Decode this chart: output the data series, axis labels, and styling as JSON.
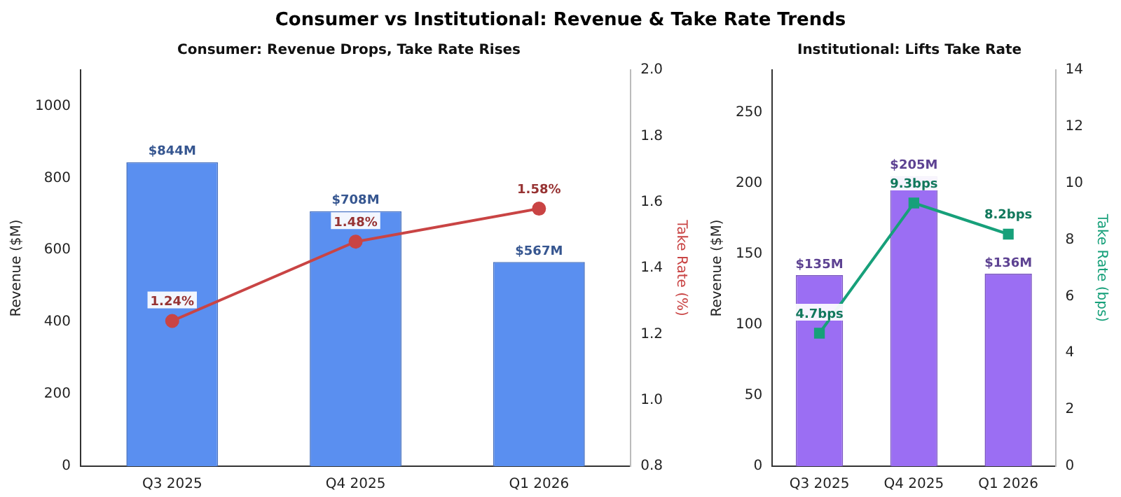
{
  "chart_data": [
    {
      "type": "bar",
      "title": "Consumer vs Institutional: Revenue & Take Rate Trends",
      "subtitle": "Consumer: Revenue Drops, Take Rate Rises",
      "categories": [
        "Q3 2025",
        "Q4 2025",
        "Q1 2026"
      ],
      "ylabel": "Revenue ($M)",
      "y2label": "Take Rate (%)",
      "ylim": [
        0,
        1100
      ],
      "yticks": [
        0,
        200,
        400,
        600,
        800,
        1000
      ],
      "y2lim": [
        0.8,
        2.0
      ],
      "y2ticks": [
        0.8,
        {
          "value": 1,
          "label": "1.0"
        },
        1.2,
        1.4,
        1.6,
        1.8,
        {
          "value": 2,
          "label": "2.0"
        }
      ],
      "grid": false,
      "legend": false,
      "series": [
        {
          "color": "#5a8ff0",
          "values": [
            844,
            708,
            567
          ],
          "value_labels": [
            "$844M",
            "$708M",
            "$567M"
          ]
        },
        {
          "type": "line",
          "axis": "y2",
          "color": "#c94444",
          "marker": "circle",
          "values": [
            1.24,
            1.48,
            1.58
          ],
          "value_labels": [
            "1.24%",
            "1.48%",
            "1.58%"
          ]
        }
      ]
    },
    {
      "type": "bar",
      "title": "Institutional: Lifts Take Rate",
      "categories": [
        "Q3 2025",
        "Q4 2025",
        "Q1 2026"
      ],
      "ylabel": "Revenue ($M)",
      "y2label": "Take Rate (bps)",
      "ylim": [
        0,
        280
      ],
      "yticks": [
        0,
        50,
        100,
        150,
        200,
        250
      ],
      "y2lim": [
        0,
        14
      ],
      "y2ticks": [
        0,
        2,
        4,
        6,
        8,
        10,
        12,
        14
      ],
      "grid": false,
      "legend": false,
      "series": [
        {
          "color": "#9b6ef3",
          "values": [
            135,
            205,
            136
          ],
          "value_labels": [
            "$135M",
            "$205M",
            "$136M"
          ]
        },
        {
          "type": "line",
          "axis": "y2",
          "color": "#17a07a",
          "marker": "square",
          "values": [
            4.7,
            9.3,
            8.2
          ],
          "value_labels": [
            "4.7bps",
            "9.3bps",
            "8.2bps"
          ]
        }
      ]
    }
  ]
}
